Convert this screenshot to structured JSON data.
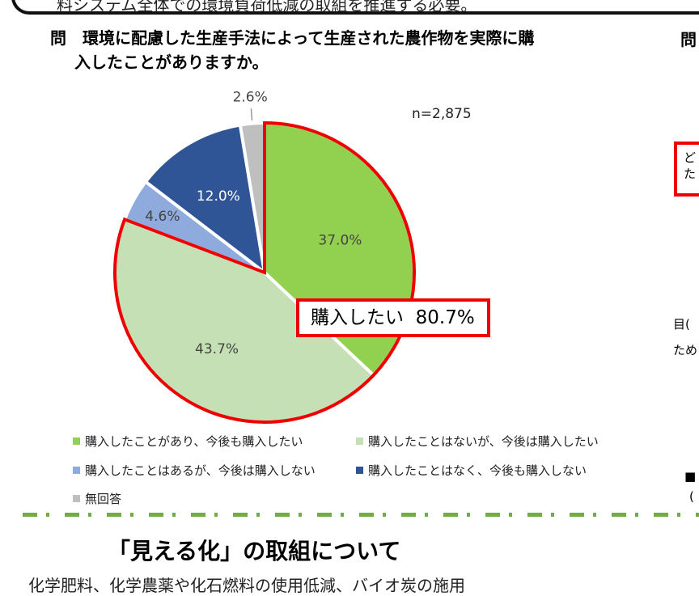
{
  "header": {
    "text": "料システム全体での環境負荷低減の取組を推進する必要。"
  },
  "question": {
    "line1": "問　環境に配慮した生産手法によって生産された農作物を実際に購",
    "line2": "入したことがありますか。"
  },
  "chart_data": {
    "type": "pie",
    "n_label": "n=2,875",
    "categories": [
      "購入したことがあり、今後も購入したい",
      "購入したことはないが、今後は購入したい",
      "購入したことはあるが、今後は購入しない",
      "購入したことはなく、今後も購入しない",
      "無回答"
    ],
    "values": [
      37.0,
      43.7,
      4.6,
      12.0,
      2.6
    ],
    "labels": [
      "37.0%",
      "43.7%",
      "4.6%",
      "12.0%",
      "2.6%"
    ],
    "colors": [
      "#92d050",
      "#c5e0b4",
      "#8faadc",
      "#2f5597",
      "#bfbfbf"
    ],
    "start": "12 o'clock, clockwise",
    "highlight": {
      "label": "購入したい",
      "value": "80.7%",
      "color": "#ee0000"
    },
    "legend_position": "bottom"
  },
  "section": {
    "title": "「見える化」の取組について",
    "body": "化学肥料、化学農薬や化石燃料の使用低減、バイオ炭の施用"
  },
  "right_fragments": {
    "q": "問",
    "box1": "ど",
    "box2": "た",
    "t1": "目(",
    "t2": "ため",
    "t3": "■",
    "t4": "("
  }
}
